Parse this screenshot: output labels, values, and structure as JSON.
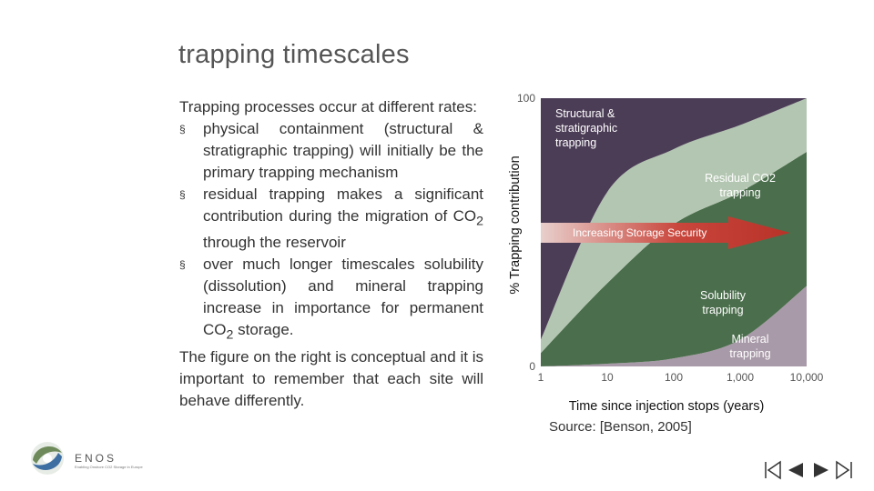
{
  "slide": {
    "title": "trapping timescales",
    "intro": "Trapping processes occur at different rates:",
    "bullets": [
      {
        "before": "physical containment (structural & stratigraphic trapping) will initially be the primary trapping mechanism",
        "sub": "",
        "after": ""
      },
      {
        "before": "residual trapping makes a significant contribution during the migration of CO",
        "sub": "2",
        "after": " through the reservoir"
      },
      {
        "before": "over much longer timescales solubility (dissolution) and mineral trapping increase in importance for permanent CO",
        "sub": "2",
        "after": " storage."
      }
    ],
    "bullet_marker": "§",
    "conclusion": "The figure on the right is conceptual and it is important to remember that each site will behave differently.",
    "source": "Source: [Benson, 2005]"
  },
  "logo": {
    "name": "ENOS",
    "tagline": "Enabling Onshore CO2 Storage in Europe"
  },
  "nav_icons": [
    "first-icon",
    "previous-icon",
    "next-icon",
    "last-icon"
  ],
  "chart_data": {
    "type": "area",
    "stacked": true,
    "xscale": "log",
    "xlim": [
      1,
      10000
    ],
    "ylim": [
      0,
      100
    ],
    "xticks": [
      "1",
      "10",
      "100",
      "1,000",
      "10,000"
    ],
    "yticks": [
      "0",
      "100"
    ],
    "xlabel": "Time since injection stops (years)",
    "ylabel": "% Trapping contribution",
    "x": [
      1,
      10,
      100,
      1000,
      10000
    ],
    "series": [
      {
        "name": "Mineral trapping",
        "label_lines": [
          "Mineral",
          "trapping"
        ],
        "values": [
          0,
          1,
          3,
          10,
          30
        ],
        "color": "#a89aa8"
      },
      {
        "name": "Solubility trapping",
        "label_lines": [
          "Solubility",
          "trapping"
        ],
        "values": [
          5,
          30,
          50,
          55,
          50
        ],
        "color": "#4b6e4c"
      },
      {
        "name": "Residual CO2 trapping",
        "label_lines": [
          "Residual CO2",
          "trapping"
        ],
        "values": [
          5,
          34,
          28,
          25,
          20
        ],
        "color": "#b3c6b1"
      },
      {
        "name": "Structural & stratigraphic trapping",
        "label_lines": [
          "Structural &",
          "stratigraphic",
          "trapping"
        ],
        "values": [
          90,
          35,
          19,
          10,
          0
        ],
        "color": "#4c3d57"
      }
    ],
    "annotation": {
      "text": "Increasing Storage Security",
      "color": "#b83228"
    }
  }
}
